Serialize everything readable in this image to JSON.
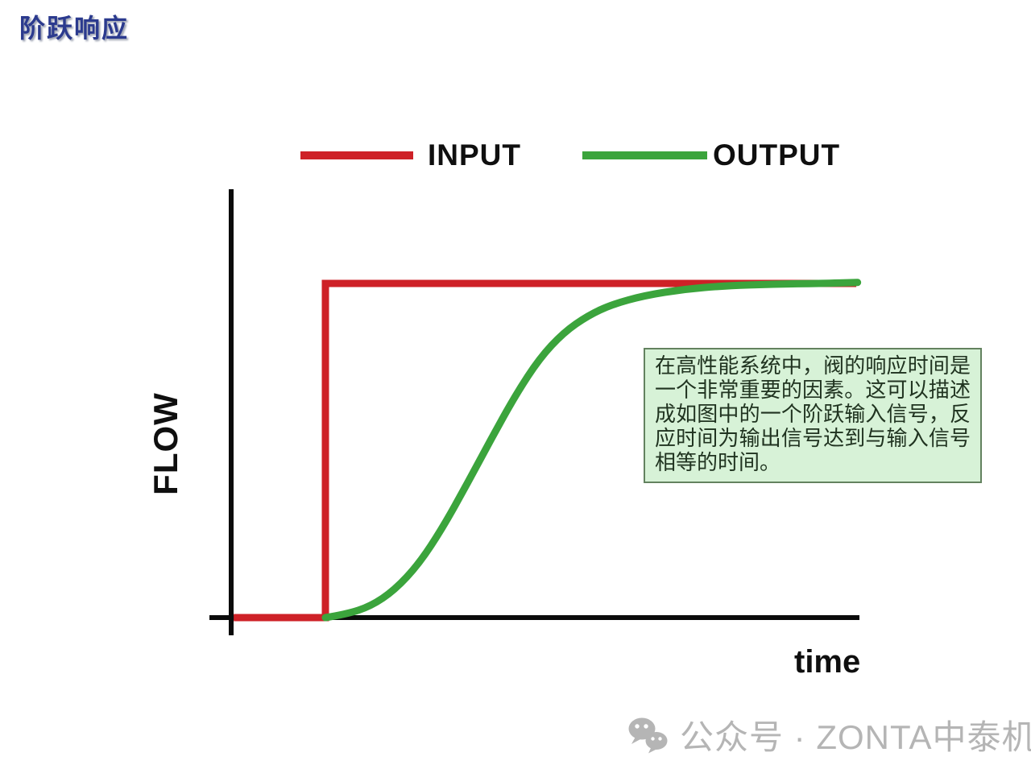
{
  "title": {
    "text": "阶跃响应",
    "color": "#2b3a8e"
  },
  "legend": {
    "items": [
      {
        "label": "INPUT",
        "color": "#ce2127"
      },
      {
        "label": "OUTPUT",
        "color": "#3ba43c"
      }
    ]
  },
  "chart_data": {
    "type": "line",
    "title": "阶跃响应",
    "xlabel": "time",
    "ylabel": "FLOW",
    "x_range": [
      0,
      1
    ],
    "y_range": [
      0,
      1.05
    ],
    "grid": false,
    "ticks": "none",
    "legend_position": "top",
    "axis_color": "#0b0b0b",
    "series": [
      {
        "name": "INPUT",
        "color": "#ce2127",
        "smooth": false,
        "points": [
          [
            0.004,
            0.0
          ],
          [
            0.15,
            0.0
          ],
          [
            0.15,
            1.0
          ],
          [
            0.995,
            1.0
          ]
        ]
      },
      {
        "name": "OUTPUT",
        "color": "#3ba43c",
        "smooth": true,
        "points": [
          [
            0.15,
            0.0
          ],
          [
            0.183,
            0.01
          ],
          [
            0.222,
            0.034
          ],
          [
            0.26,
            0.082
          ],
          [
            0.299,
            0.161
          ],
          [
            0.337,
            0.27
          ],
          [
            0.376,
            0.402
          ],
          [
            0.414,
            0.535
          ],
          [
            0.453,
            0.667
          ],
          [
            0.491,
            0.776
          ],
          [
            0.529,
            0.853
          ],
          [
            0.568,
            0.904
          ],
          [
            0.606,
            0.937
          ],
          [
            0.658,
            0.964
          ],
          [
            0.722,
            0.983
          ],
          [
            0.786,
            0.993
          ],
          [
            0.863,
            0.998
          ],
          [
            0.94,
            1.0
          ],
          [
            0.997,
            1.003
          ]
        ]
      }
    ]
  },
  "annotation_box": {
    "text": "在高性能系统中，阀的响应时间是一个非常重要的因素。这可以描述成如图中的一个阶跃输入信号，反应时间为输出信号达到与输入信号相等的时间。",
    "bg": "#d7f2d7",
    "border": "#63825f",
    "text_color": "#203320"
  },
  "watermark": {
    "icon": "wechat-icon",
    "text": "公众号 · ZONTA中泰机电",
    "color": "#b5b5b5"
  }
}
